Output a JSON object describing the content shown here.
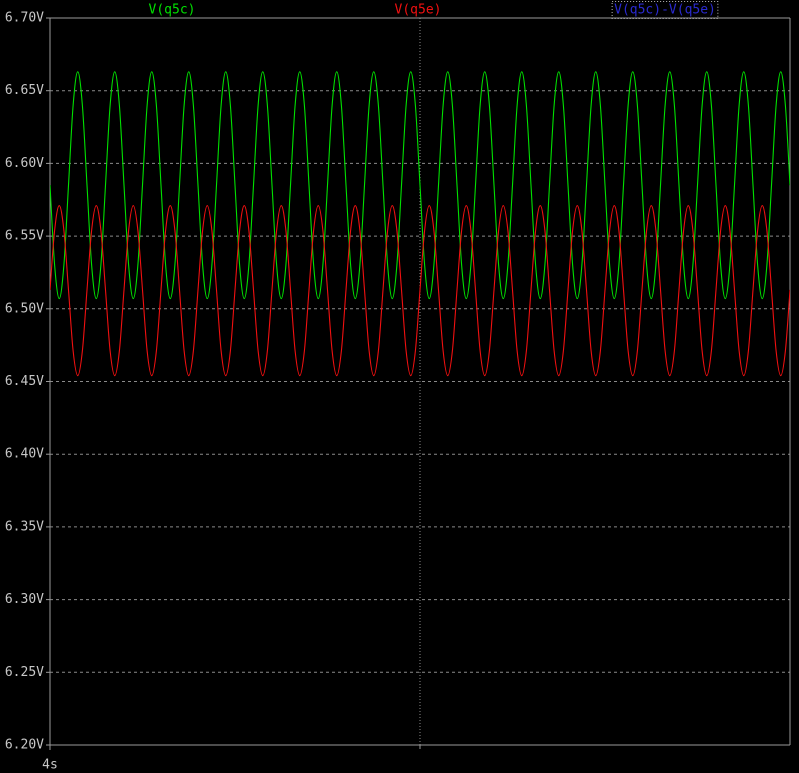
{
  "chart_data": {
    "type": "line",
    "x": [
      4,
      4.000125,
      4.00025,
      4.000375,
      4.0005,
      4.000625,
      4.00075,
      4.000875,
      4.001,
      4.001125,
      4.00125,
      4.001375,
      4.0015,
      4.001625,
      4.00175,
      4.001875,
      4.002,
      4.002125,
      4.00225,
      4.002375,
      4.0025,
      4.002625,
      4.00275,
      4.002875,
      4.003,
      4.003125,
      4.00325,
      4.003375,
      4.0035,
      4.003625,
      4.00375,
      4.003875,
      4.004,
      4.004125,
      4.00425,
      4.004375,
      4.0045,
      4.004625,
      4.00475,
      4.004875,
      4.005,
      4.005125,
      4.00525,
      4.005375,
      4.0055,
      4.005625,
      4.00575,
      4.005875,
      4.006,
      4.006125,
      4.00625,
      4.006375,
      4.0065,
      4.006625,
      4.00675,
      4.006875,
      4.007,
      4.007125,
      4.00725,
      4.007375,
      4.0075,
      4.007625,
      4.00775,
      4.007875,
      4.008,
      4.008125,
      4.00825,
      4.008375,
      4.0085,
      4.008625,
      4.00875,
      4.008875,
      4.009,
      4.009125,
      4.00925,
      4.009375,
      4.0095,
      4.009625,
      4.00975,
      4.009875,
      4.01,
      4.010125,
      4.01025,
      4.010375,
      4.0105,
      4.010625,
      4.01075,
      4.010875,
      4.011,
      4.011125,
      4.01125,
      4.011375,
      4.0115,
      4.011625,
      4.01175,
      4.011875,
      4.012,
      4.012125,
      4.01225,
      4.012375,
      4.0125,
      4.012625,
      4.01275,
      4.012875,
      4.013,
      4.013125,
      4.01325,
      4.013375,
      4.0135,
      4.013625,
      4.01375,
      4.013875,
      4.014,
      4.014125,
      4.01425,
      4.014375,
      4.0145,
      4.014625,
      4.01475,
      4.014875,
      4.015,
      4.015125,
      4.01525,
      4.015375,
      4.0155,
      4.015625,
      4.01575,
      4.015875,
      4.016,
      4.016125,
      4.01625,
      4.016375,
      4.0165,
      4.016625,
      4.01675,
      4.016875,
      4.017,
      4.017125,
      4.01725,
      4.017375,
      4.0175,
      4.017625,
      4.01775,
      4.017875,
      4.018,
      4.018125,
      4.01825,
      4.018375,
      4.0185,
      4.018625,
      4.01875,
      4.018875,
      4.019,
      4.019125,
      4.01925,
      4.019375,
      4.0195,
      4.019625,
      4.01975,
      4.019875,
      4.02
    ],
    "series": [
      {
        "name": "V(q5c)",
        "color": "#00e000",
        "values": [
          6.585,
          6.53,
          6.507,
          6.53,
          6.585,
          6.64,
          6.663,
          6.64,
          6.585,
          6.53,
          6.507,
          6.53,
          6.585,
          6.64,
          6.663,
          6.64,
          6.585,
          6.53,
          6.507,
          6.53,
          6.585,
          6.64,
          6.663,
          6.64,
          6.585,
          6.53,
          6.507,
          6.53,
          6.585,
          6.64,
          6.663,
          6.64,
          6.585,
          6.53,
          6.507,
          6.53,
          6.585,
          6.64,
          6.663,
          6.64,
          6.585,
          6.53,
          6.507,
          6.53,
          6.585,
          6.64,
          6.663,
          6.64,
          6.585,
          6.53,
          6.507,
          6.53,
          6.585,
          6.64,
          6.663,
          6.64,
          6.585,
          6.53,
          6.507,
          6.53,
          6.585,
          6.64,
          6.663,
          6.64,
          6.585,
          6.53,
          6.507,
          6.53,
          6.585,
          6.64,
          6.663,
          6.64,
          6.585,
          6.53,
          6.507,
          6.53,
          6.585,
          6.64,
          6.663,
          6.64,
          6.585,
          6.53,
          6.507,
          6.53,
          6.585,
          6.64,
          6.663,
          6.64,
          6.585,
          6.53,
          6.507,
          6.53,
          6.585,
          6.64,
          6.663,
          6.64,
          6.585,
          6.53,
          6.507,
          6.53,
          6.585,
          6.64,
          6.663,
          6.64,
          6.585,
          6.53,
          6.507,
          6.53,
          6.585,
          6.64,
          6.663,
          6.64,
          6.585,
          6.53,
          6.507,
          6.53,
          6.585,
          6.64,
          6.663,
          6.64,
          6.585,
          6.53,
          6.507,
          6.53,
          6.585,
          6.64,
          6.663,
          6.64,
          6.585,
          6.53,
          6.507,
          6.53,
          6.585,
          6.64,
          6.663,
          6.64,
          6.585,
          6.53,
          6.507,
          6.53,
          6.585,
          6.64,
          6.663,
          6.64,
          6.585,
          6.53,
          6.507,
          6.53,
          6.585,
          6.64,
          6.663,
          6.64,
          6.585,
          6.53,
          6.507,
          6.53,
          6.585,
          6.64,
          6.663,
          6.64,
          6.585
        ]
      },
      {
        "name": "V(q5e)",
        "color": "#f01010",
        "values": [
          6.513,
          6.554,
          6.571,
          6.554,
          6.513,
          6.471,
          6.454,
          6.471,
          6.513,
          6.554,
          6.571,
          6.554,
          6.513,
          6.471,
          6.454,
          6.471,
          6.513,
          6.554,
          6.571,
          6.554,
          6.513,
          6.471,
          6.454,
          6.471,
          6.513,
          6.554,
          6.571,
          6.554,
          6.513,
          6.471,
          6.454,
          6.471,
          6.513,
          6.554,
          6.571,
          6.554,
          6.513,
          6.471,
          6.454,
          6.471,
          6.513,
          6.554,
          6.571,
          6.554,
          6.513,
          6.471,
          6.454,
          6.471,
          6.513,
          6.554,
          6.571,
          6.554,
          6.513,
          6.471,
          6.454,
          6.471,
          6.513,
          6.554,
          6.571,
          6.554,
          6.513,
          6.471,
          6.454,
          6.471,
          6.513,
          6.554,
          6.571,
          6.554,
          6.513,
          6.471,
          6.454,
          6.471,
          6.513,
          6.554,
          6.571,
          6.554,
          6.513,
          6.471,
          6.454,
          6.471,
          6.513,
          6.554,
          6.571,
          6.554,
          6.513,
          6.471,
          6.454,
          6.471,
          6.513,
          6.554,
          6.571,
          6.554,
          6.513,
          6.471,
          6.454,
          6.471,
          6.513,
          6.554,
          6.571,
          6.554,
          6.513,
          6.471,
          6.454,
          6.471,
          6.513,
          6.554,
          6.571,
          6.554,
          6.513,
          6.471,
          6.454,
          6.471,
          6.513,
          6.554,
          6.571,
          6.554,
          6.513,
          6.471,
          6.454,
          6.471,
          6.513,
          6.554,
          6.571,
          6.554,
          6.513,
          6.471,
          6.454,
          6.471,
          6.513,
          6.554,
          6.571,
          6.554,
          6.513,
          6.471,
          6.454,
          6.471,
          6.513,
          6.554,
          6.571,
          6.554,
          6.513,
          6.471,
          6.454,
          6.471,
          6.513,
          6.554,
          6.571,
          6.554,
          6.513,
          6.471,
          6.454,
          6.471,
          6.513,
          6.554,
          6.571,
          6.554,
          6.513,
          6.471,
          6.454,
          6.471,
          6.513
        ]
      },
      {
        "name": "V(q5c)-V(q5e)",
        "color": "#2a2ad0"
      }
    ],
    "xlim": [
      4,
      4.02
    ],
    "xticks": [
      {
        "value": 4,
        "label": "4s"
      }
    ],
    "xgridlines": [
      4.01
    ],
    "ylim": [
      6.2,
      6.7
    ],
    "yticks": [
      {
        "value": 6.2,
        "label": "6.20V"
      },
      {
        "value": 6.25,
        "label": "6.25V"
      },
      {
        "value": 6.3,
        "label": "6.30V"
      },
      {
        "value": 6.35,
        "label": "6.35V"
      },
      {
        "value": 6.4,
        "label": "6.40V"
      },
      {
        "value": 6.45,
        "label": "6.45V"
      },
      {
        "value": 6.5,
        "label": "6.50V"
      },
      {
        "value": 6.55,
        "label": "6.55V"
      },
      {
        "value": 6.6,
        "label": "6.60V"
      },
      {
        "value": 6.65,
        "label": "6.65V"
      },
      {
        "value": 6.7,
        "label": "6.70V"
      }
    ],
    "grid": true
  }
}
